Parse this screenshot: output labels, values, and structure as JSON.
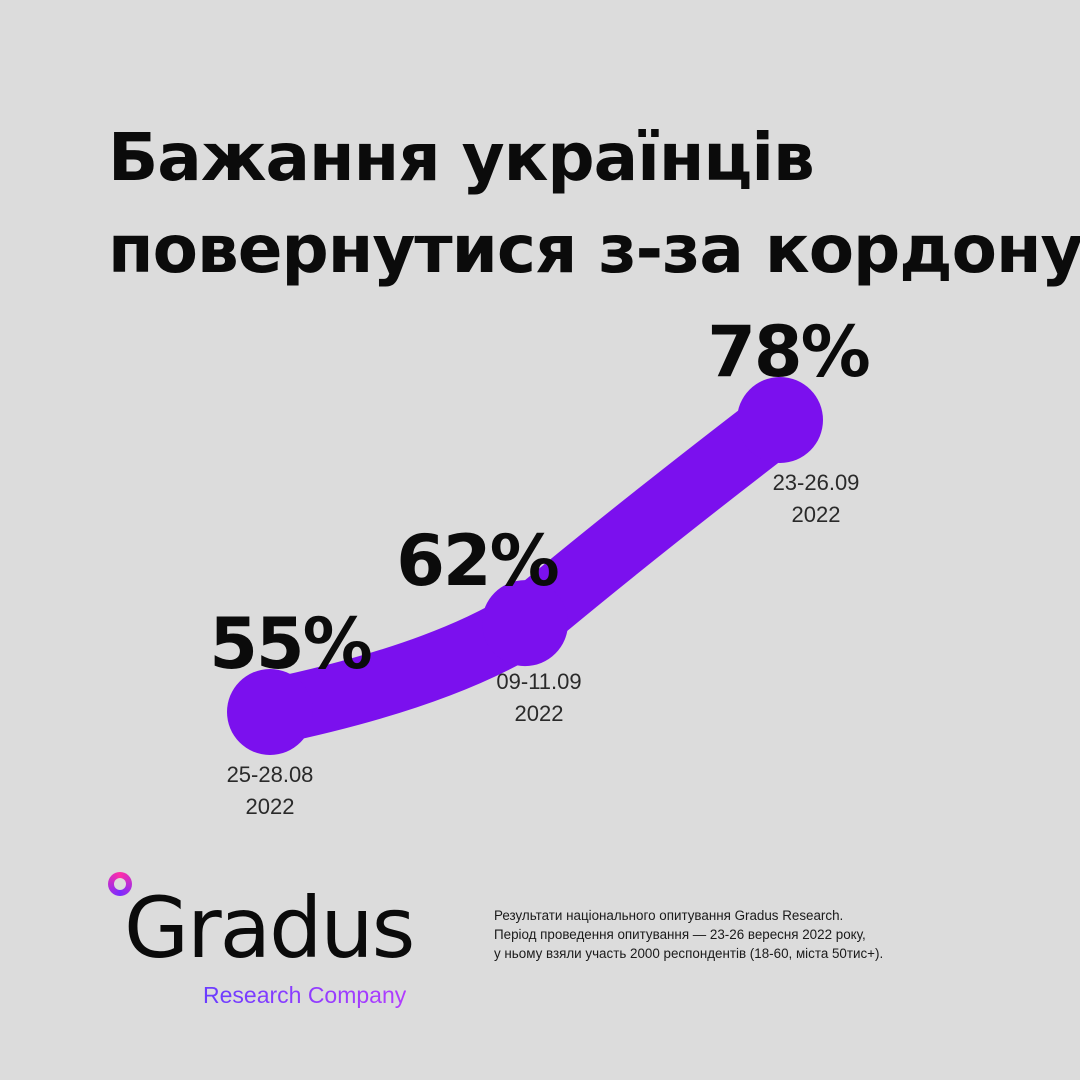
{
  "title": {
    "line1": "Бажання українців",
    "line2": "повернутися з-за кордону"
  },
  "chart_data": {
    "type": "line",
    "title": "Бажання українців повернутися з-за кордону",
    "x": [
      "25-28.08 2022",
      "09-11.09 2022",
      "23-26.09 2022"
    ],
    "points": [
      {
        "value": 55,
        "label": "55%",
        "date_line1": "25-28.08",
        "date_line2": "2022"
      },
      {
        "value": 62,
        "label": "62%",
        "date_line1": "09-11.09",
        "date_line2": "2022"
      },
      {
        "value": 78,
        "label": "78%",
        "date_line1": "23-26.09",
        "date_line2": "2022"
      }
    ],
    "unit": "%",
    "grid": false,
    "legend": "none",
    "color": "#7b10ee"
  },
  "brand": {
    "name": "Gradus",
    "subtitle": "Research Company",
    "accent_from": "#6a3cff",
    "accent_to": "#b23cff"
  },
  "footnote": {
    "line1": "Результати національного опитування Gradus Research.",
    "line2": "Період проведення опитування — 23-26 вересня 2022 року,",
    "line3": "у ньому взяли участь 2000 респондентів (18-60, міста 50тис+)."
  },
  "colors": {
    "background": "#dcdcdc",
    "text": "#0b0b0b",
    "accent": "#7b10ee"
  }
}
